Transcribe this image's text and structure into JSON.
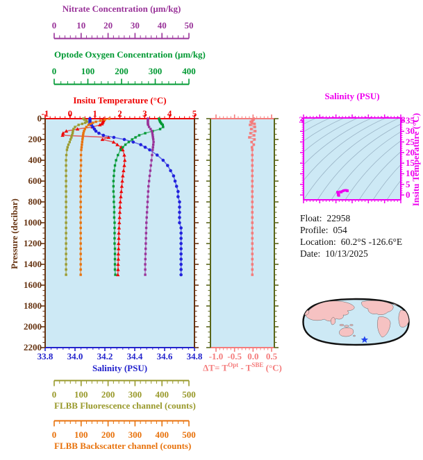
{
  "axes": {
    "nitrate": {
      "title": "Nitrate Concentration (μm/kg)",
      "tick_labels": [
        "0",
        "10",
        "20",
        "30",
        "40",
        "50"
      ],
      "color": "#993399"
    },
    "oxygen": {
      "title": "Optode Oxygen Concentration (μm/kg)",
      "tick_labels": [
        "0",
        "100",
        "200",
        "300",
        "400"
      ],
      "color": "#009933"
    },
    "temperature": {
      "title": "Insitu Temperature (°C)",
      "tick_labels": [
        "-1",
        "0",
        "1",
        "2",
        "3",
        "4",
        "5"
      ],
      "color": "#EE0000"
    },
    "salinity": {
      "title": "Salinity (PSU)",
      "tick_labels": [
        "33.8",
        "34.0",
        "34.2",
        "34.4",
        "34.6",
        "34.8"
      ],
      "color": "#2222CC"
    },
    "pressure": {
      "title": "Pressure (decibar)",
      "tick_labels": [
        "0",
        "200",
        "400",
        "600",
        "800",
        "1000",
        "1200",
        "1400",
        "1600",
        "1800",
        "2000",
        "2200"
      ],
      "color": "#663311"
    },
    "fluorescence": {
      "title": "FLBB Fluorescence channel (counts)",
      "tick_labels": [
        "0",
        "100",
        "200",
        "300",
        "400",
        "500"
      ],
      "color": "#99992B"
    },
    "backscatter": {
      "title": "FLBB Backscatter channel (counts)",
      "tick_labels": [
        "0",
        "100",
        "200",
        "300",
        "400",
        "500"
      ],
      "color": "#E8720C"
    },
    "delta_t": {
      "prefix": "ΔT= T",
      "sup1": "Opt",
      "mid": " - T",
      "sup2": "SBE",
      "suffix": " (°C)",
      "tick_labels": [
        "-1.0",
        "-0.5",
        "0.0",
        "0.5"
      ],
      "color": "#F47C7C",
      "frame_color": "#5A661A"
    },
    "ts_salinity": {
      "title": "Salinity (PSU)",
      "tick_labels": [
        "32",
        "33",
        "34",
        "35",
        "36",
        "37",
        "38"
      ],
      "color": "#EE00EE"
    },
    "ts_temperature": {
      "title": "Insitu Temperature (°C)",
      "tick_labels": [
        "0",
        "5",
        "10",
        "15",
        "20",
        "25",
        "30",
        "35"
      ],
      "color": "#EE00EE"
    }
  },
  "info": {
    "lines": [
      {
        "label": "Float:",
        "value": "22958"
      },
      {
        "label": "Profile:",
        "value": "054"
      },
      {
        "label": "Location:",
        "value": "60.2°S  -126.6°E"
      },
      {
        "label": "Date:",
        "value": "10/13/2025"
      }
    ]
  },
  "map": {
    "ocean_color": "#CDE9F5",
    "land_color": "#F6C2C2",
    "outline_color": "#111111",
    "star_color": "#2244EE",
    "star_fx": 0.575,
    "star_fy": 0.82
  },
  "plot_bg": "#CDE9F5",
  "chart_data": {
    "type": "line",
    "profiles": {
      "y_axis": {
        "label": "Pressure (decibar)",
        "range": [
          0,
          2200
        ]
      },
      "pressure_dbar": [
        0,
        10,
        20,
        30,
        40,
        50,
        60,
        80,
        100,
        120,
        140,
        160,
        180,
        200,
        225,
        250,
        275,
        300,
        350,
        400,
        450,
        500,
        550,
        600,
        650,
        700,
        750,
        800,
        850,
        900,
        950,
        1000,
        1050,
        1100,
        1150,
        1200,
        1250,
        1300,
        1350,
        1400,
        1450,
        1500
      ],
      "series": [
        {
          "name": "Insitu Temperature (°C)",
          "color": "#EE0000",
          "marker": "triangle",
          "range": [
            -1,
            5
          ],
          "values": [
            1.35,
            1.35,
            1.34,
            1.32,
            1.3,
            1.28,
            1.2,
            0.9,
            0.3,
            -0.15,
            -0.28,
            -0.3,
            1.55,
            1.3,
            1.75,
            1.9,
            2.05,
            2.12,
            2.18,
            2.2,
            2.18,
            2.15,
            2.12,
            2.1,
            2.08,
            2.06,
            2.04,
            2.02,
            2.01,
            2.0,
            1.99,
            1.98,
            1.97,
            1.96,
            1.96,
            1.95,
            1.95,
            1.94,
            1.94,
            1.93,
            1.93,
            1.92
          ]
        },
        {
          "name": "Salinity (PSU)",
          "color": "#2222DD",
          "marker": "circle",
          "range": [
            33.8,
            34.8
          ],
          "values": [
            34.1,
            34.1,
            34.1,
            34.1,
            34.1,
            34.1,
            34.11,
            34.12,
            34.13,
            34.14,
            34.16,
            34.19,
            34.26,
            34.33,
            34.39,
            34.44,
            34.47,
            34.5,
            34.55,
            34.59,
            34.62,
            34.64,
            34.66,
            34.67,
            34.68,
            34.69,
            34.69,
            34.7,
            34.7,
            34.7,
            34.7,
            34.7,
            34.71,
            34.71,
            34.71,
            34.71,
            34.71,
            34.71,
            34.71,
            34.71,
            34.71,
            34.71
          ]
        },
        {
          "name": "Optode Oxygen Concentration (μm/kg)",
          "color": "#009933",
          "marker": "square",
          "range": [
            0,
            400
          ],
          "values": [
            305,
            306,
            307,
            308,
            310,
            312,
            315,
            316,
            308,
            288,
            268,
            252,
            242,
            233,
            224,
            215,
            208,
            202,
            195,
            190,
            187,
            185,
            184,
            183,
            183,
            183,
            184,
            184,
            185,
            185,
            185,
            186,
            186,
            186,
            186,
            186,
            187,
            187,
            187,
            187,
            187,
            188
          ]
        },
        {
          "name": "Nitrate Concentration (μm/kg)",
          "color": "#993399",
          "marker": "square",
          "range": [
            0,
            50
          ],
          "values": [
            34.4,
            34.4,
            34.4,
            34.4,
            34.4,
            34.4,
            34.5,
            34.8,
            35.3,
            35.7,
            35.9,
            36.0,
            36.1,
            36.2,
            36.3,
            36.2,
            36.1,
            36.0,
            35.8,
            35.6,
            35.4,
            35.2,
            35.0,
            34.8,
            34.6,
            34.5,
            34.4,
            34.3,
            34.2,
            34.1,
            34.0,
            33.9,
            33.85,
            33.8,
            33.75,
            33.7,
            33.65,
            33.6,
            33.55,
            33.5,
            33.5,
            33.5
          ]
        },
        {
          "name": "FLBB Fluorescence channel (counts)",
          "color": "#9B9B30",
          "marker": "square",
          "range": [
            0,
            500
          ],
          "values": [
            128,
            132,
            138,
            140,
            134,
            124,
            112,
            100,
            95,
            93,
            92,
            90,
            88,
            85,
            82,
            78,
            75,
            73,
            71,
            70,
            70,
            70,
            70,
            70,
            70,
            70,
            70,
            70,
            70,
            70,
            70,
            70,
            70,
            70,
            70,
            70,
            70,
            70,
            70,
            70,
            70,
            70
          ]
        },
        {
          "name": "FLBB Backscatter channel (counts)",
          "color": "#E8720C",
          "marker": "square",
          "range": [
            0,
            500
          ],
          "values": [
            215,
            200,
            185,
            170,
            160,
            152,
            145,
            138,
            133,
            130,
            128,
            127,
            126,
            125,
            124,
            123,
            122,
            121,
            120,
            120,
            120,
            119,
            119,
            119,
            119,
            119,
            119,
            119,
            119,
            119,
            119,
            119,
            119,
            119,
            119,
            119,
            119,
            119,
            119,
            119,
            119,
            119
          ]
        }
      ]
    },
    "delta_t": {
      "x_label": "ΔT= TOpt - TSBE (°C)",
      "x_range": [
        -1.0,
        0.5
      ],
      "color": "#F47C7C",
      "values": [
        0.02,
        0.01,
        -0.02,
        -0.06,
        -0.03,
        0.04,
        -0.08,
        0.05,
        -0.05,
        0.06,
        -0.07,
        0.03,
        -0.1,
        0.04,
        -0.04,
        0.02,
        -0.03,
        -0.02,
        -0.02,
        -0.02,
        -0.02,
        -0.02,
        -0.02,
        -0.02,
        -0.02,
        -0.02,
        -0.02,
        -0.02,
        -0.02,
        -0.02,
        -0.02,
        -0.02,
        -0.02,
        -0.02,
        -0.02,
        -0.02,
        -0.02,
        -0.02,
        -0.02,
        -0.02,
        -0.02,
        -0.02
      ]
    },
    "ts": {
      "x_label": "Salinity (PSU)",
      "x_range": [
        32,
        38
      ],
      "y_label": "Insitu Temperature (°C)",
      "y_range": [
        0,
        35
      ],
      "color": "#EE00EE",
      "note": "T-S points are the Salinity and Insitu Temperature profile values plotted against each other"
    }
  }
}
